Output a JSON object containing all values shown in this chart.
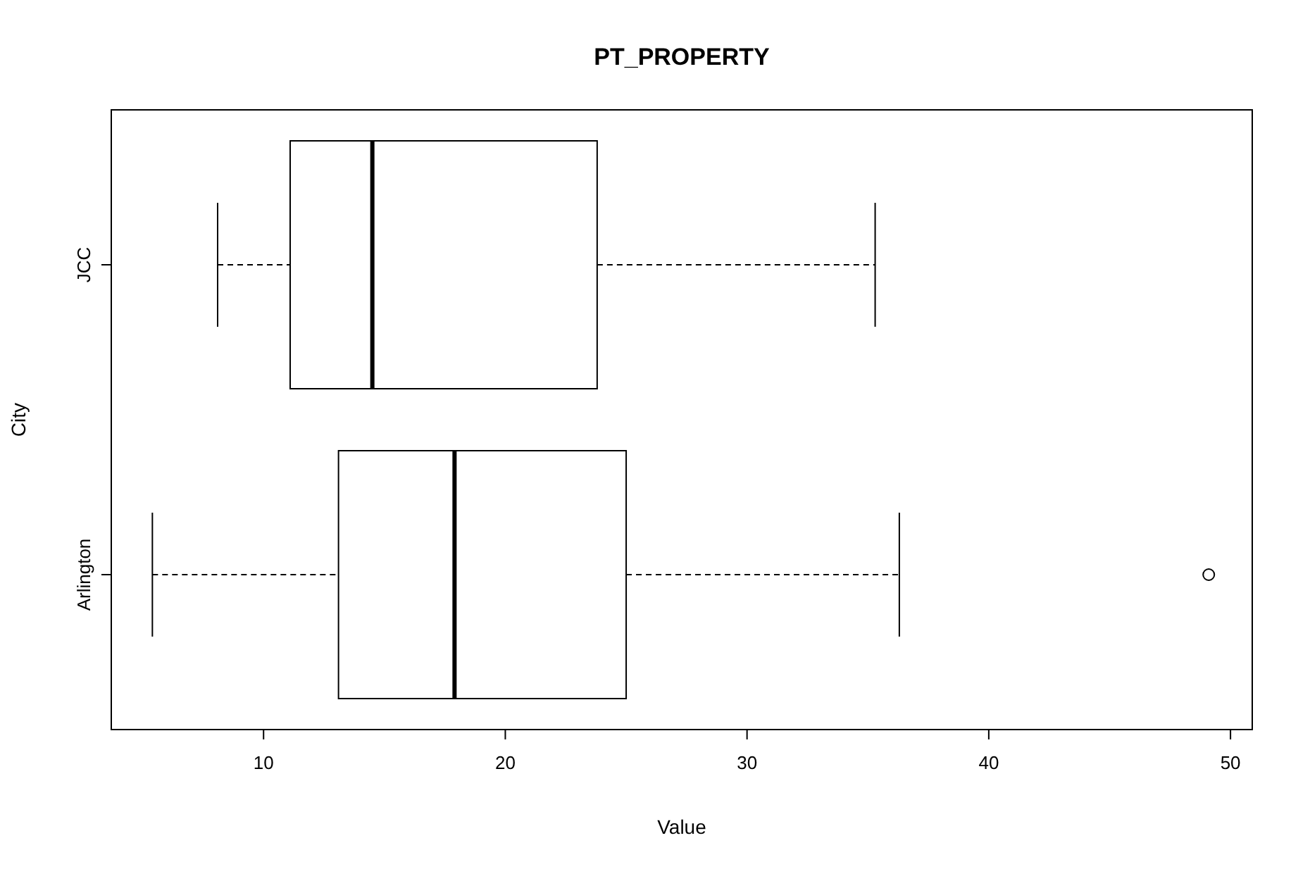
{
  "chart_data": {
    "type": "box",
    "title": "PT_PROPERTY",
    "xlabel": "Value",
    "ylabel": "City",
    "orientation": "horizontal",
    "categories": [
      "JCC",
      "Arlington"
    ],
    "boxes": [
      {
        "low": 8.1,
        "q1": 11.1,
        "median": 14.5,
        "q3": 23.8,
        "high": 35.3
      },
      {
        "low": 5.4,
        "q1": 13.1,
        "median": 17.9,
        "q3": 25.0,
        "high": 36.3,
        "outliers": [
          49.1
        ]
      }
    ],
    "xlim": [
      3.7,
      50.9
    ],
    "xticks": [
      10,
      20,
      30,
      40,
      50
    ],
    "grid": false
  }
}
